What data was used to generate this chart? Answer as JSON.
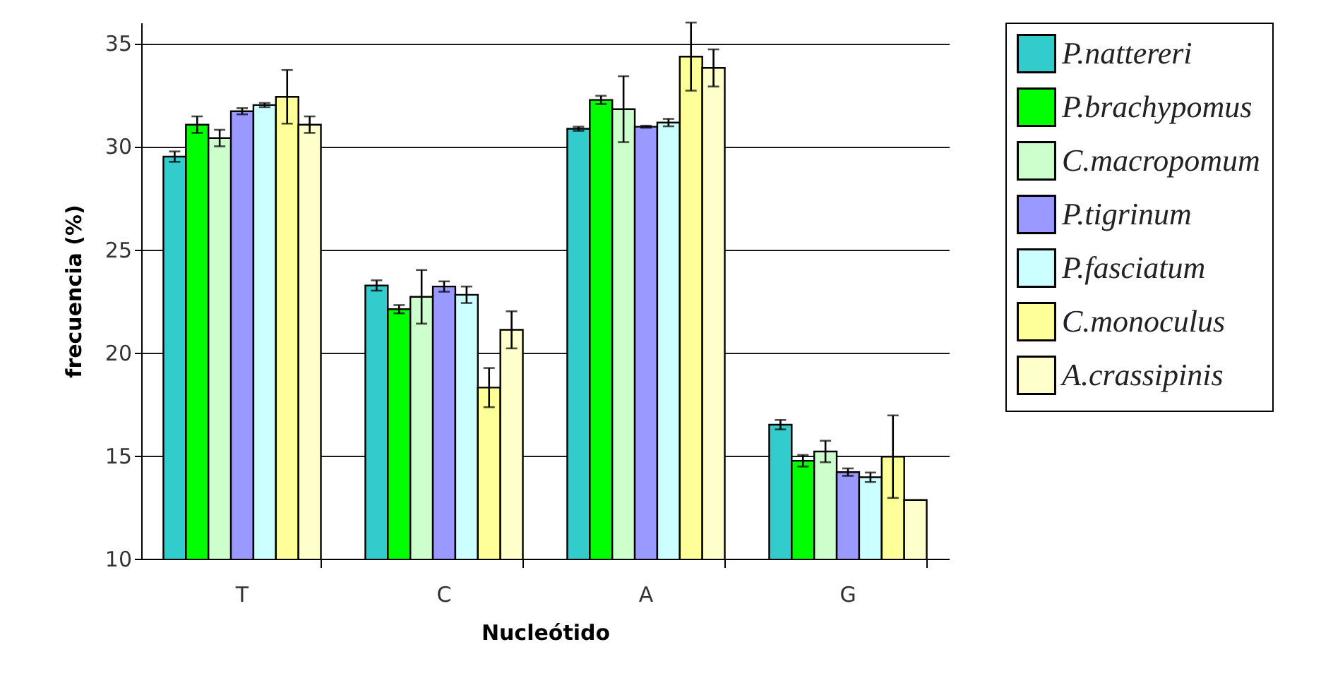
{
  "chart_data": {
    "type": "bar",
    "xlabel": "Nucleótido",
    "ylabel": "frecuencia (%)",
    "categories": [
      "T",
      "C",
      "A",
      "G"
    ],
    "ylim": [
      10,
      36
    ],
    "yticks": [
      10,
      15,
      20,
      25,
      30,
      35
    ],
    "grid": "y",
    "legend": "right",
    "series": [
      {
        "name": "P.nattereri",
        "color": "#33cccc",
        "values": [
          29.5,
          23.25,
          30.85,
          16.5
        ],
        "errors": [
          0.25,
          0.25,
          0.1,
          0.23
        ]
      },
      {
        "name": "P.brachypomus",
        "color": "#00ff00",
        "values": [
          31.05,
          22.1,
          32.25,
          14.75
        ],
        "errors": [
          0.4,
          0.2,
          0.2,
          0.28
        ]
      },
      {
        "name": "C.macropomum",
        "color": "#ccffcc",
        "values": [
          30.4,
          22.7,
          31.8,
          15.2
        ],
        "errors": [
          0.4,
          1.3,
          1.6,
          0.52
        ]
      },
      {
        "name": "P.tigrinum",
        "color": "#9999ff",
        "values": [
          31.7,
          23.2,
          30.95,
          14.2
        ],
        "errors": [
          0.15,
          0.25,
          0.05,
          0.18
        ]
      },
      {
        "name": "P.fasciatum",
        "color": "#ccffff",
        "values": [
          32.0,
          22.8,
          31.15,
          13.95
        ],
        "errors": [
          0.1,
          0.4,
          0.18,
          0.23
        ]
      },
      {
        "name": "C.monoculus",
        "color": "#ffff99",
        "values": [
          32.4,
          18.3,
          34.35,
          14.95
        ],
        "errors": [
          1.3,
          0.95,
          1.65,
          2.0
        ]
      },
      {
        "name": "A.crassipinis",
        "color": "#ffffcc",
        "values": [
          31.05,
          21.1,
          33.8,
          12.85
        ],
        "errors": [
          0.4,
          0.9,
          0.9,
          null
        ]
      }
    ]
  }
}
